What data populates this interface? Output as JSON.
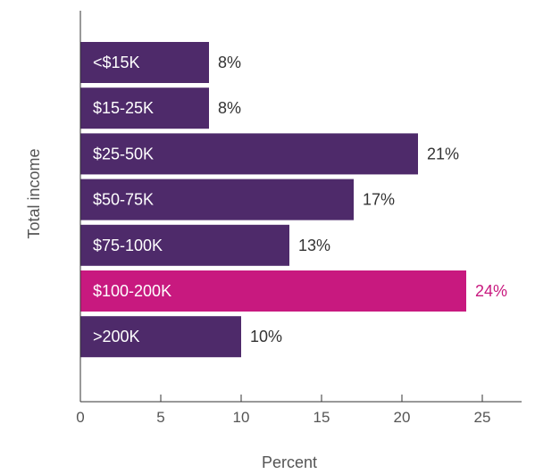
{
  "colors": {
    "default_bar": "#4e2a6a",
    "highlight_bar": "#c8197f",
    "value_text": "#333333",
    "bar_text": "#ffffff",
    "axis": "#333333"
  },
  "chart_data": {
    "type": "bar",
    "orientation": "horizontal",
    "categories": [
      "<$15K",
      "$15-25K",
      "$25-50K",
      "$50-75K",
      "$75-100K",
      "$100-200K",
      ">200K"
    ],
    "values": [
      8,
      8,
      21,
      17,
      13,
      24,
      10
    ],
    "value_labels": [
      "8%",
      "8%",
      "21%",
      "17%",
      "13%",
      "24%",
      "10%"
    ],
    "highlight_index": 5,
    "xlabel": "Percent",
    "ylabel": "Total income",
    "xlim": [
      0,
      27
    ],
    "xticks": [
      0,
      5,
      10,
      15,
      20,
      25
    ],
    "xtick_labels": [
      "0",
      "5",
      "10",
      "15",
      "20",
      "25"
    ],
    "grid": false,
    "legend": "none"
  }
}
